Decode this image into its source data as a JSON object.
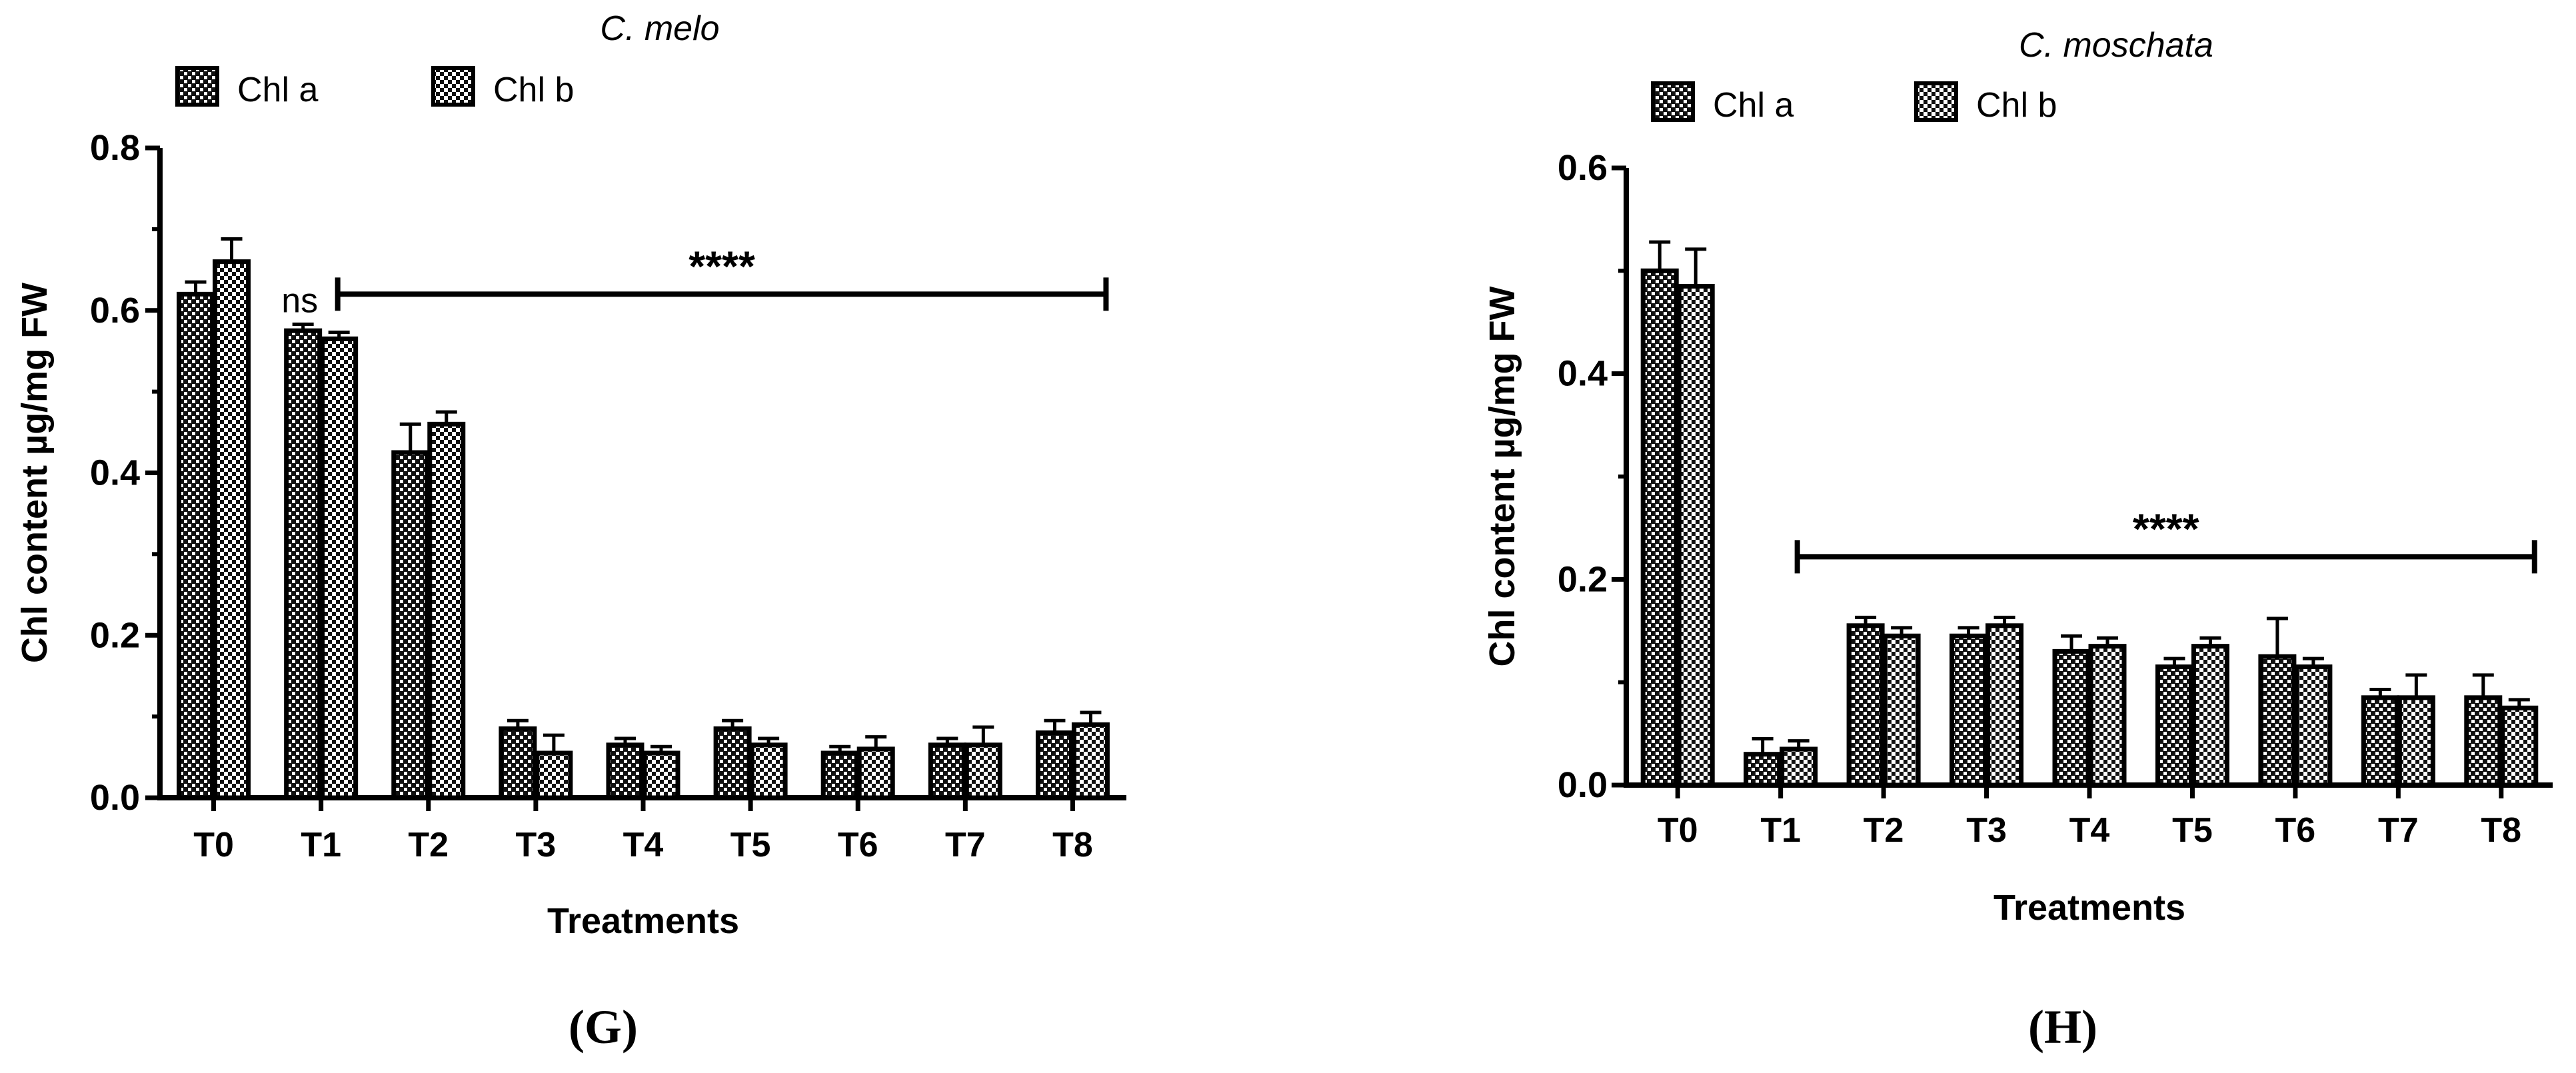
{
  "colors": {
    "bar_outline": "#000000",
    "pattern_dark": "#111111",
    "pattern_light": "#ffffff",
    "background": "#ffffff"
  },
  "chart_data": [
    {
      "type": "bar",
      "panel": "(G)",
      "title": "C. melo",
      "xlabel": "Treatments",
      "ylabel": "Chl content µg/mg FW",
      "ylim": [
        0,
        0.8
      ],
      "yticks": [
        "0.0",
        "0.2",
        "0.4",
        "0.6",
        "0.8"
      ],
      "categories": [
        "T0",
        "T1",
        "T2",
        "T3",
        "T4",
        "T5",
        "T6",
        "T7",
        "T8"
      ],
      "legend_position": "top-left",
      "series": [
        {
          "name": "Chl a",
          "values": [
            0.62,
            0.575,
            0.425,
            0.085,
            0.065,
            0.085,
            0.055,
            0.065,
            0.08
          ],
          "errors": [
            0.015,
            0.008,
            0.035,
            0.01,
            0.008,
            0.01,
            0.008,
            0.008,
            0.015
          ]
        },
        {
          "name": "Chl b",
          "values": [
            0.66,
            0.565,
            0.46,
            0.055,
            0.055,
            0.065,
            0.06,
            0.065,
            0.09
          ],
          "errors": [
            0.028,
            0.008,
            0.015,
            0.022,
            0.008,
            0.008,
            0.015,
            0.022,
            0.015
          ]
        }
      ],
      "annotations": [
        {
          "text": "ns",
          "category": "T1"
        },
        {
          "text": "****",
          "from": "T1",
          "to": "T8",
          "y": 0.62
        }
      ]
    },
    {
      "type": "bar",
      "panel": "(H)",
      "title": "C. moschata",
      "xlabel": "Treatments",
      "ylabel": "Chl content µg/mg FW",
      "ylim": [
        0,
        0.6
      ],
      "yticks": [
        "0.0",
        "0.2",
        "0.4",
        "0.6"
      ],
      "categories": [
        "T0",
        "T1",
        "T2",
        "T3",
        "T4",
        "T5",
        "T6",
        "T7",
        "T8"
      ],
      "legend_position": "top-left",
      "series": [
        {
          "name": "Chl a",
          "values": [
            0.5,
            0.03,
            0.155,
            0.145,
            0.13,
            0.115,
            0.125,
            0.085,
            0.085
          ],
          "errors": [
            0.028,
            0.015,
            0.008,
            0.008,
            0.015,
            0.008,
            0.037,
            0.008,
            0.022
          ]
        },
        {
          "name": "Chl b",
          "values": [
            0.485,
            0.035,
            0.145,
            0.155,
            0.135,
            0.135,
            0.115,
            0.085,
            0.075
          ],
          "errors": [
            0.036,
            0.008,
            0.008,
            0.008,
            0.008,
            0.008,
            0.008,
            0.022,
            0.008
          ]
        }
      ],
      "annotations": [
        {
          "text": "****",
          "from": "T1",
          "to": "T8",
          "y": 0.222
        }
      ]
    }
  ]
}
